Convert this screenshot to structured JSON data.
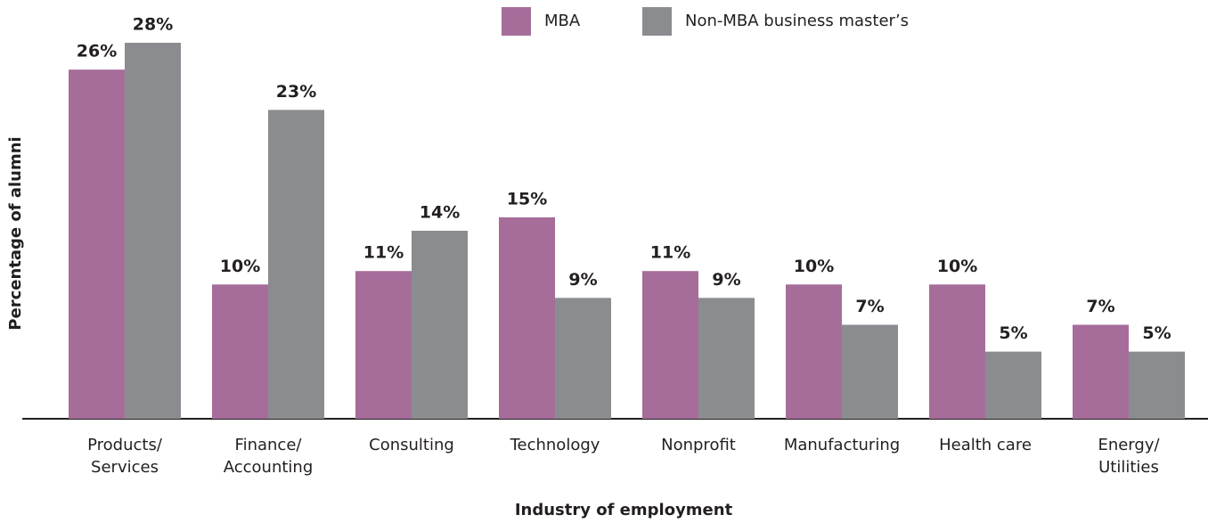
{
  "chart_data": {
    "type": "bar",
    "x_label": "Industry of employment",
    "y_label": "Percentage of alumni",
    "categories": [
      "Products/Services",
      "Finance/Accounting",
      "Consulting",
      "Technology",
      "Nonprofit",
      "Manufacturing",
      "Health care",
      "Energy/Utilities"
    ],
    "series": [
      {
        "name": "MBA",
        "color": "#a66d9b",
        "values": [
          26,
          10,
          11,
          15,
          11,
          10,
          10,
          7
        ],
        "value_labels": [
          "26%",
          "10%",
          "11%",
          "15%",
          "11%",
          "10%",
          "10%",
          "7%"
        ]
      },
      {
        "name": "Non-MBA business master’s",
        "color": "#8b8c8f",
        "values": [
          28,
          23,
          14,
          9,
          9,
          7,
          5,
          5
        ],
        "value_labels": [
          "28%",
          "23%",
          "14%",
          "9%",
          "9%",
          "7%",
          "5%",
          "5%"
        ]
      }
    ],
    "legend": "top"
  }
}
